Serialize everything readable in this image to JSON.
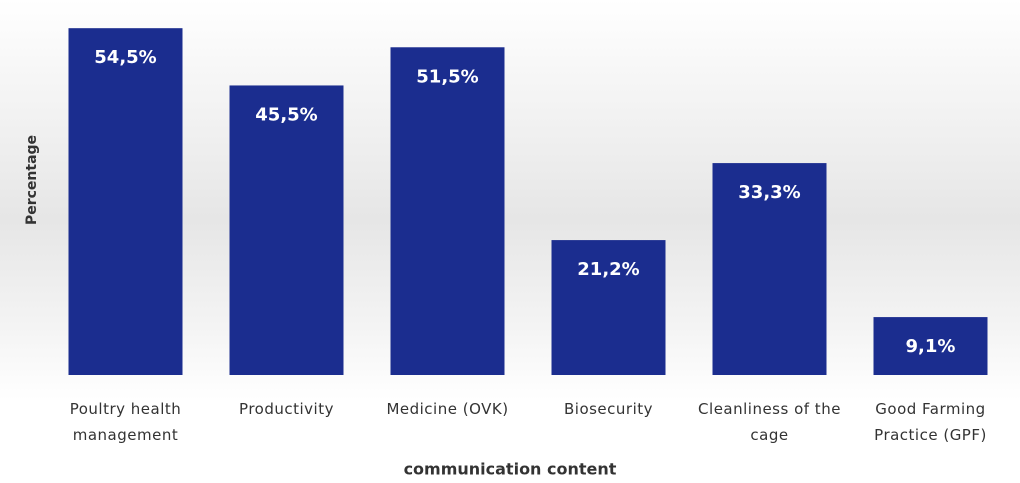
{
  "chart_data": {
    "type": "bar",
    "y_label": "Percentage",
    "x_label": "communication content",
    "categories": [
      "Poultry health management",
      "Productivity",
      "Medicine (OVK)",
      "Biosecurity",
      "Cleanliness of the cage",
      "Good Farming Practice (GPF)"
    ],
    "values": [
      54.5,
      45.5,
      51.5,
      21.2,
      33.3,
      9.1
    ],
    "value_labels": [
      "54,5%",
      "45,5%",
      "51,5%",
      "21,2%",
      "33,3%",
      "9,1%"
    ],
    "color": "#1b2d8f",
    "ylim": [
      0,
      55
    ]
  }
}
